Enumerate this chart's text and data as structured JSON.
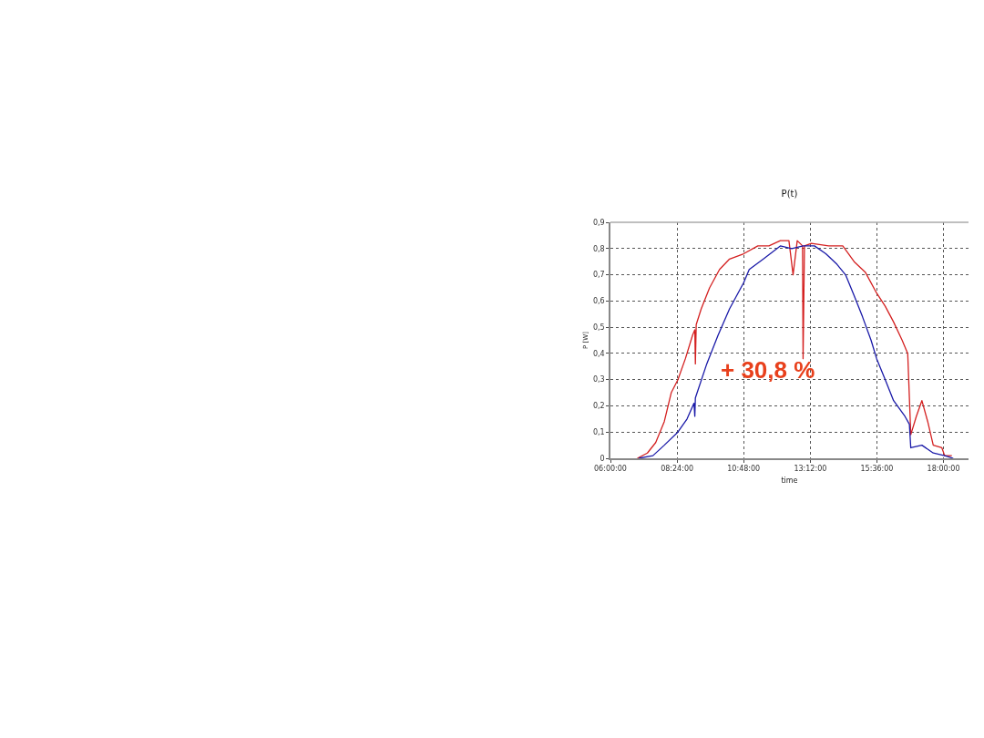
{
  "chart_data": {
    "type": "line",
    "title": "P(t)",
    "xlabel": "time",
    "ylabel": "P [W]",
    "xlim": [
      6,
      18.9
    ],
    "xticks": [
      {
        "value": 6,
        "label": "06:00:00"
      },
      {
        "value": 8.4,
        "label": "08:24:00"
      },
      {
        "value": 10.8,
        "label": "10:48:00"
      },
      {
        "value": 13.2,
        "label": "13:12:00"
      },
      {
        "value": 15.6,
        "label": "15:36:00"
      },
      {
        "value": 18,
        "label": "18:00:00"
      }
    ],
    "ylim": [
      0,
      0.9
    ],
    "yticks": [
      0,
      {
        "value": 0.1,
        "label": "0,1"
      },
      {
        "value": 0.2,
        "label": "0,2"
      },
      {
        "value": 0.3,
        "label": "0,3"
      },
      {
        "value": 0.4,
        "label": "0,4"
      },
      {
        "value": 0.5,
        "label": "0,5"
      },
      {
        "value": 0.6,
        "label": "0,6"
      },
      {
        "value": 0.7,
        "label": "0,7"
      },
      {
        "value": 0.8,
        "label": "0,8"
      },
      {
        "value": 0.9,
        "label": "0,9"
      }
    ],
    "grid": true,
    "marker": "none",
    "line_style": "solid",
    "annotations": [
      "+ 30,8 %"
    ],
    "series": [
      {
        "color": "#d42020",
        "x": [
          6.97,
          7.33,
          7.63,
          7.94,
          8.19,
          8.43,
          8.7,
          8.96,
          9.04,
          9.06,
          9.09,
          9.27,
          9.57,
          9.93,
          10.29,
          10.8,
          11.31,
          11.71,
          12.12,
          12.43,
          12.58,
          12.73,
          12.92,
          12.94,
          12.99,
          13.24,
          13.86,
          14.37,
          14.78,
          15.18,
          15.59,
          15.9,
          16.2,
          16.51,
          16.71,
          16.82,
          17.02,
          17.22,
          17.43,
          17.63,
          17.94,
          18.04,
          18.3
        ],
        "values": [
          0.0,
          0.02,
          0.06,
          0.14,
          0.25,
          0.3,
          0.38,
          0.47,
          0.49,
          0.36,
          0.51,
          0.57,
          0.65,
          0.72,
          0.76,
          0.78,
          0.81,
          0.81,
          0.83,
          0.83,
          0.7,
          0.83,
          0.81,
          0.38,
          0.81,
          0.82,
          0.81,
          0.81,
          0.75,
          0.71,
          0.63,
          0.58,
          0.52,
          0.45,
          0.4,
          0.09,
          0.16,
          0.22,
          0.14,
          0.05,
          0.04,
          0.01,
          0.01
        ]
      },
      {
        "color": "#1a1aa8",
        "x": [
          7.02,
          7.53,
          7.94,
          8.43,
          8.76,
          9.01,
          9.04,
          9.06,
          9.47,
          9.88,
          10.29,
          10.8,
          11.0,
          11.51,
          12.12,
          12.53,
          12.94,
          13.35,
          13.76,
          14.16,
          14.47,
          14.78,
          15.08,
          15.39,
          15.59,
          15.9,
          16.2,
          16.61,
          16.77,
          16.82,
          17.22,
          17.63,
          18.04,
          18.35
        ],
        "values": [
          0.0,
          0.01,
          0.05,
          0.1,
          0.15,
          0.21,
          0.16,
          0.23,
          0.36,
          0.47,
          0.57,
          0.67,
          0.72,
          0.76,
          0.81,
          0.8,
          0.81,
          0.81,
          0.78,
          0.74,
          0.7,
          0.62,
          0.54,
          0.45,
          0.38,
          0.3,
          0.22,
          0.16,
          0.13,
          0.04,
          0.05,
          0.02,
          0.01,
          0.0
        ]
      }
    ]
  }
}
